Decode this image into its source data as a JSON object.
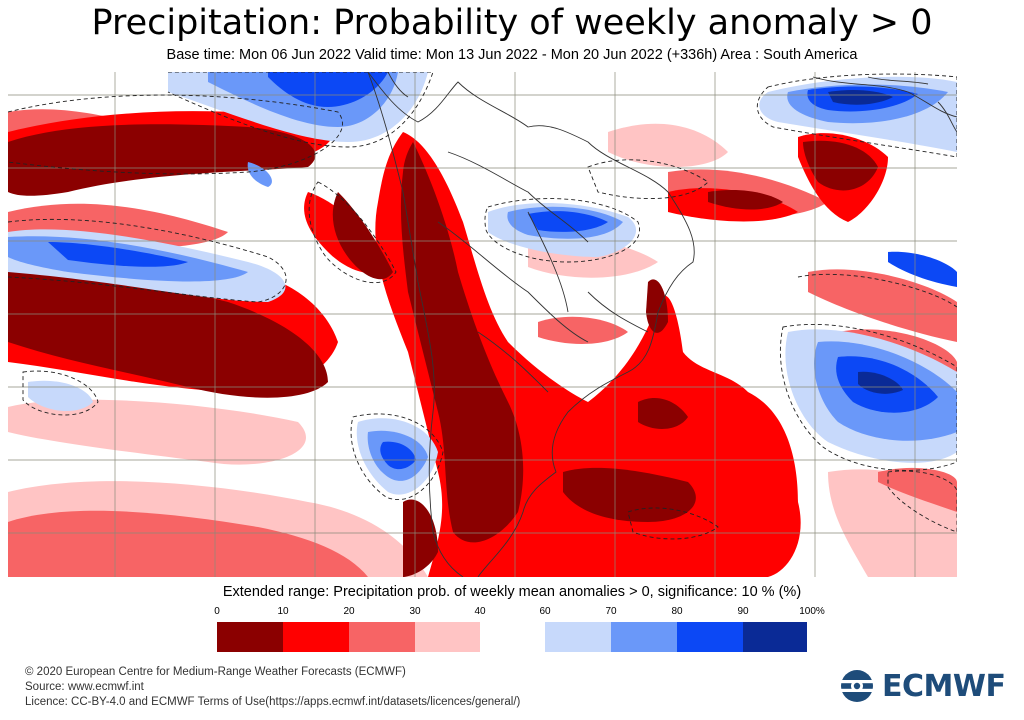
{
  "header": {
    "title": "Precipitation: Probability of weekly anomaly > 0",
    "subtitle": "Base time: Mon 06 Jun 2022 Valid time: Mon 13 Jun 2022 - Mon 20 Jun 2022 (+336h) Area : South America"
  },
  "map": {
    "region": "South America",
    "has_gridlines": true,
    "has_coastlines": true
  },
  "colorbar": {
    "title": "Extended range: Precipitation prob. of weekly mean anomalies > 0, significance: 10 % (%)",
    "ticks": [
      "0",
      "10",
      "20",
      "30",
      "40",
      "60",
      "70",
      "80",
      "90",
      "100%"
    ],
    "bins": [
      {
        "from": 0,
        "to": 10,
        "color": "#8b0000"
      },
      {
        "from": 10,
        "to": 20,
        "color": "#ff0000"
      },
      {
        "from": 20,
        "to": 30,
        "color": "#f76465"
      },
      {
        "from": 30,
        "to": 40,
        "color": "#ffc4c4"
      },
      {
        "from": 60,
        "to": 70,
        "color": "#c7d9fb"
      },
      {
        "from": 70,
        "to": 80,
        "color": "#6a98f9"
      },
      {
        "from": 80,
        "to": 90,
        "color": "#0c48f5"
      },
      {
        "from": 90,
        "to": 100,
        "color": "#0a2a96"
      }
    ]
  },
  "footer": {
    "copyright": "© 2020 European Centre for Medium-Range Weather Forecasts (ECMWF)",
    "source": "Source: www.ecmwf.int",
    "licence": "Licence: CC-BY-4.0 and ECMWF Terms of Use(https://apps.ecmwf.int/datasets/licences/general/)"
  },
  "logo": {
    "text": "ECMWF",
    "color": "#1e4c7a"
  }
}
